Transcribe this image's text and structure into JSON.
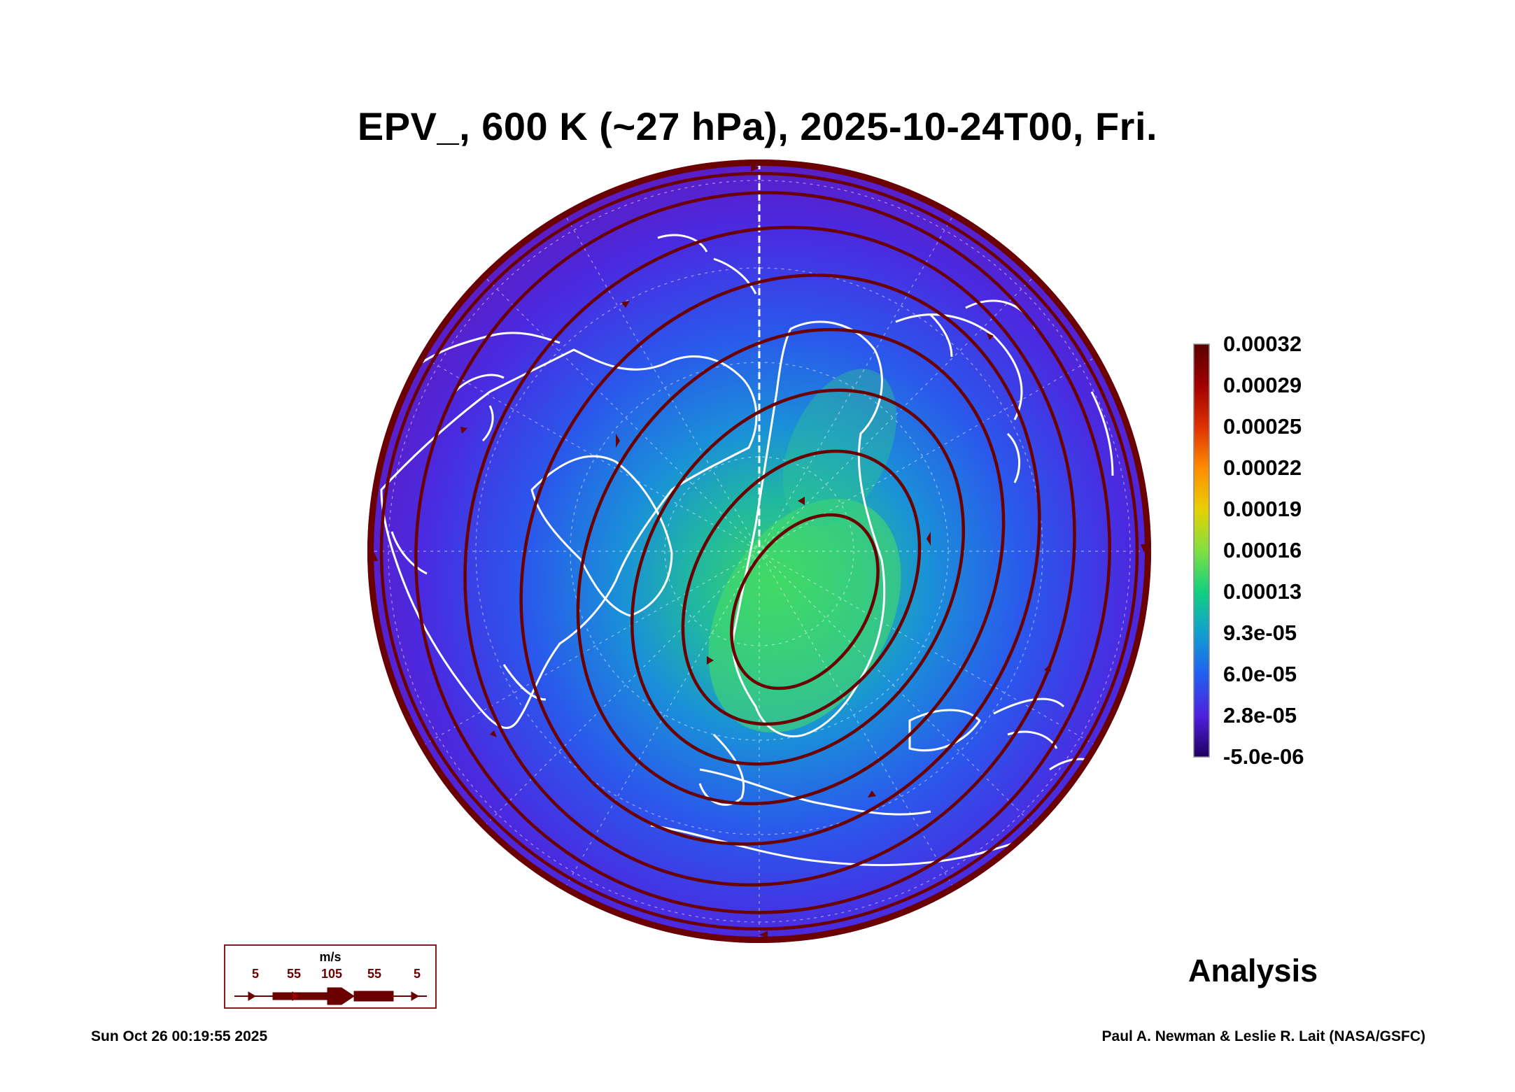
{
  "title": "EPV_, 600 K (~27 hPa), 2025-10-24T00, Fri.",
  "colorbar": {
    "labels": [
      "0.00032",
      "0.00029",
      "0.00025",
      "0.00022",
      "0.00019",
      "0.00016",
      "0.00013",
      "9.3e-05",
      "6.0e-05",
      "2.8e-05",
      "-5.0e-06"
    ],
    "colors": [
      "#5a0000",
      "#a00000",
      "#e03000",
      "#ff8c00",
      "#e8d000",
      "#80e040",
      "#10d080",
      "#10a0d0",
      "#2060f0",
      "#5020e0",
      "#200060"
    ]
  },
  "wind_legend": {
    "unit": "m/s",
    "speeds": [
      "5",
      "55",
      "105",
      "55",
      "5"
    ],
    "color": "#6b0000"
  },
  "label": "Analysis",
  "timestamp": "Sun Oct 26 00:19:55 2025",
  "credit": "Paul A. Newman & Leslie R. Lait (NASA/GSFC)",
  "map": {
    "projection": "north-polar-stereographic",
    "coastline_color": "#ffffff",
    "streamline_color": "#6b0000"
  }
}
